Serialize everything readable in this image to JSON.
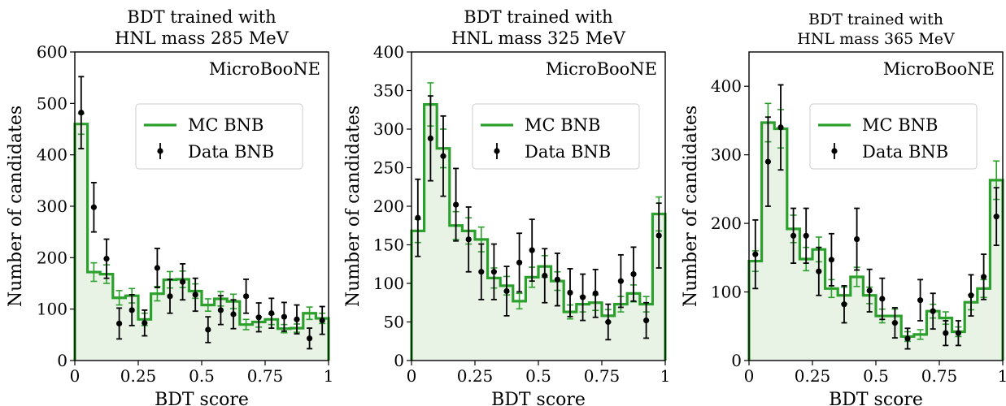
{
  "colors": {
    "mc": "#2ca02c",
    "mc_fill": "#e8f3e6",
    "data": "#000000"
  },
  "chart_data": [
    {
      "type": "histogram",
      "title_lines": [
        "BDT trained with",
        "HNL mass 285 MeV"
      ],
      "xlabel": "BDT score",
      "ylabel": "Number of candidates",
      "xlim": [
        0,
        1
      ],
      "ylim": [
        0,
        600
      ],
      "xticks": [
        0,
        0.25,
        0.5,
        0.75,
        1
      ],
      "xtick_labels": [
        "0",
        "0.25",
        "0.5",
        "0.75",
        "1"
      ],
      "yticks": [
        0,
        100,
        200,
        300,
        400,
        500,
        600
      ],
      "ytick_labels": [
        "0",
        "100",
        "200",
        "300",
        "400",
        "500",
        "600"
      ],
      "watermark": "MicroBooNE",
      "legend": [
        "MC BNB",
        "Data BNB"
      ],
      "bin_edges": [
        0,
        0.05,
        0.1,
        0.15,
        0.2,
        0.25,
        0.3,
        0.35,
        0.4,
        0.45,
        0.5,
        0.55,
        0.6,
        0.65,
        0.7,
        0.75,
        0.8,
        0.85,
        0.9,
        0.95,
        1.0
      ],
      "series": [
        {
          "name": "MC BNB",
          "values": [
            460,
            172,
            168,
            122,
            126,
            80,
            130,
            157,
            158,
            135,
            108,
            120,
            115,
            70,
            75,
            80,
            62,
            63,
            92,
            82
          ],
          "err": [
            20,
            18,
            18,
            14,
            14,
            12,
            14,
            16,
            16,
            14,
            12,
            14,
            14,
            10,
            10,
            10,
            8,
            8,
            12,
            10
          ]
        },
        {
          "name": "Data BNB",
          "x": [
            0.025,
            0.075,
            0.125,
            0.175,
            0.225,
            0.275,
            0.325,
            0.375,
            0.425,
            0.475,
            0.525,
            0.575,
            0.625,
            0.675,
            0.725,
            0.775,
            0.825,
            0.875,
            0.925,
            0.975
          ],
          "values": [
            482,
            298,
            198,
            72,
            98,
            73,
            180,
            125,
            153,
            128,
            60,
            98,
            90,
            125,
            84,
            92,
            85,
            80,
            43,
            78
          ],
          "err": [
            70,
            48,
            38,
            30,
            30,
            25,
            38,
            33,
            35,
            32,
            25,
            28,
            28,
            33,
            28,
            29,
            28,
            28,
            20,
            27
          ]
        }
      ]
    },
    {
      "type": "histogram",
      "title_lines": [
        "BDT trained with",
        "HNL mass 325 MeV"
      ],
      "xlabel": "BDT score",
      "ylabel": "Number of candidates",
      "xlim": [
        0,
        1
      ],
      "ylim": [
        0,
        400
      ],
      "xticks": [
        0,
        0.25,
        0.5,
        0.75,
        1
      ],
      "xtick_labels": [
        "0",
        "0.25",
        "0.5",
        "0.75",
        "1"
      ],
      "yticks": [
        0,
        50,
        100,
        150,
        200,
        250,
        300,
        350,
        400
      ],
      "ytick_labels": [
        "0",
        "50",
        "100",
        "150",
        "200",
        "250",
        "300",
        "350",
        "400"
      ],
      "watermark": "MicroBooNE",
      "legend": [
        "MC BNB",
        "Data BNB"
      ],
      "bin_edges": [
        0,
        0.05,
        0.1,
        0.15,
        0.2,
        0.25,
        0.3,
        0.35,
        0.4,
        0.45,
        0.5,
        0.55,
        0.6,
        0.65,
        0.7,
        0.75,
        0.8,
        0.85,
        0.9,
        0.95,
        1.0
      ],
      "series": [
        {
          "name": "MC BNB",
          "values": [
            168,
            332,
            275,
            175,
            168,
            157,
            107,
            97,
            77,
            108,
            122,
            103,
            63,
            73,
            75,
            58,
            73,
            87,
            73,
            190
          ],
          "err": [
            15,
            28,
            25,
            18,
            17,
            16,
            13,
            12,
            10,
            13,
            14,
            12,
            9,
            10,
            10,
            8,
            10,
            11,
            10,
            22
          ]
        },
        {
          "name": "Data BNB",
          "x": [
            0.025,
            0.075,
            0.125,
            0.175,
            0.225,
            0.275,
            0.325,
            0.375,
            0.425,
            0.475,
            0.525,
            0.575,
            0.625,
            0.675,
            0.725,
            0.775,
            0.825,
            0.875,
            0.925,
            0.975
          ],
          "values": [
            185,
            288,
            265,
            202,
            157,
            115,
            115,
            90,
            127,
            143,
            110,
            105,
            88,
            82,
            87,
            50,
            103,
            112,
            52,
            162
          ],
          "err": [
            50,
            55,
            52,
            47,
            42,
            36,
            36,
            32,
            38,
            40,
            35,
            34,
            31,
            30,
            31,
            23,
            34,
            35,
            23,
            42
          ]
        }
      ]
    },
    {
      "type": "histogram",
      "title_lines": [
        "BDT trained with",
        "HNL mass 365 MeV"
      ],
      "xlabel": "BDT score",
      "ylabel": "Number of candidates",
      "xlim": [
        0,
        1
      ],
      "ylim": [
        0,
        450
      ],
      "xticks": [
        0,
        0.25,
        0.5,
        0.75,
        1
      ],
      "xtick_labels": [
        "0",
        "0.25",
        "0.5",
        "0.75",
        "1"
      ],
      "yticks": [
        0,
        100,
        200,
        300,
        400
      ],
      "ytick_labels": [
        "0",
        "100",
        "200",
        "300",
        "400"
      ],
      "watermark": "MicroBooNE",
      "legend": [
        "MC BNB",
        "Data BNB"
      ],
      "bin_edges": [
        0,
        0.05,
        0.1,
        0.15,
        0.2,
        0.25,
        0.3,
        0.35,
        0.4,
        0.45,
        0.5,
        0.55,
        0.6,
        0.65,
        0.7,
        0.75,
        0.8,
        0.85,
        0.9,
        0.95,
        1.0
      ],
      "series": [
        {
          "name": "MC BNB",
          "values": [
            145,
            347,
            338,
            192,
            148,
            162,
            105,
            95,
            122,
            95,
            65,
            65,
            35,
            38,
            72,
            62,
            42,
            85,
            105,
            263
          ],
          "err": [
            15,
            28,
            28,
            20,
            17,
            18,
            13,
            12,
            14,
            12,
            10,
            10,
            7,
            7,
            10,
            9,
            7,
            11,
            13,
            28
          ]
        },
        {
          "name": "Data BNB",
          "x": [
            0.025,
            0.075,
            0.125,
            0.175,
            0.225,
            0.275,
            0.325,
            0.375,
            0.425,
            0.475,
            0.525,
            0.575,
            0.625,
            0.675,
            0.725,
            0.775,
            0.825,
            0.875,
            0.925,
            0.975
          ],
          "values": [
            155,
            290,
            340,
            182,
            182,
            130,
            147,
            82,
            177,
            102,
            90,
            55,
            32,
            88,
            72,
            40,
            40,
            95,
            122,
            210
          ],
          "err": [
            50,
            65,
            62,
            40,
            40,
            35,
            38,
            27,
            45,
            31,
            30,
            22,
            15,
            30,
            26,
            18,
            18,
            30,
            33,
            42
          ]
        }
      ]
    }
  ]
}
